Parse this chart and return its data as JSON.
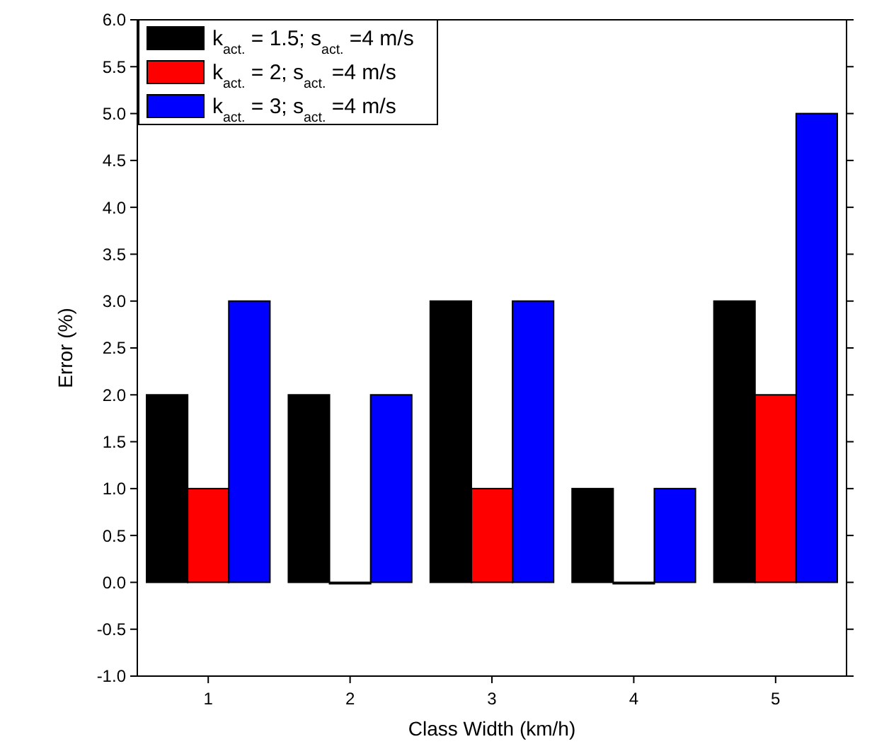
{
  "chart_data": {
    "type": "bar",
    "xlabel": "Class Width (km/h)",
    "ylabel": "Error (%)",
    "categories": [
      "1",
      "2",
      "3",
      "4",
      "5"
    ],
    "series": [
      {
        "name": "k$_{act.}$ = 1.5; s$_{act.}$ =4 m/s",
        "color": "#000000",
        "values": [
          2,
          2,
          3,
          1,
          3
        ]
      },
      {
        "name": "k$_{act.}$ = 2; s$_{act.}$ =4 m/s",
        "color": "#ff0000",
        "values": [
          1,
          0,
          1,
          0,
          2
        ]
      },
      {
        "name": "k$_{act.}$ = 3; s$_{act.}$ =4 m/s",
        "color": "#0000ff",
        "values": [
          3,
          2,
          3,
          1,
          5
        ]
      }
    ],
    "ylim": [
      -1,
      6
    ],
    "yticks": [
      {
        "value": -1,
        "label": "-1.0"
      },
      {
        "value": -0.5,
        "label": "-0.5"
      },
      {
        "value": 0,
        "label": "0.0"
      },
      {
        "value": 0.5,
        "label": "0.5"
      },
      {
        "value": 1,
        "label": "1.0"
      },
      {
        "value": 1.5,
        "label": "1.5"
      },
      {
        "value": 2,
        "label": "2.0"
      },
      {
        "value": 2.5,
        "label": "2.5"
      },
      {
        "value": 3,
        "label": "3.0"
      },
      {
        "value": 3.5,
        "label": "3.5"
      },
      {
        "value": 4,
        "label": "4.0"
      },
      {
        "value": 4.5,
        "label": "4.5"
      },
      {
        "value": 5,
        "label": "5.0"
      },
      {
        "value": 5.5,
        "label": "5.5"
      },
      {
        "value": 6,
        "label": "6.0"
      }
    ],
    "legend": "top left"
  }
}
